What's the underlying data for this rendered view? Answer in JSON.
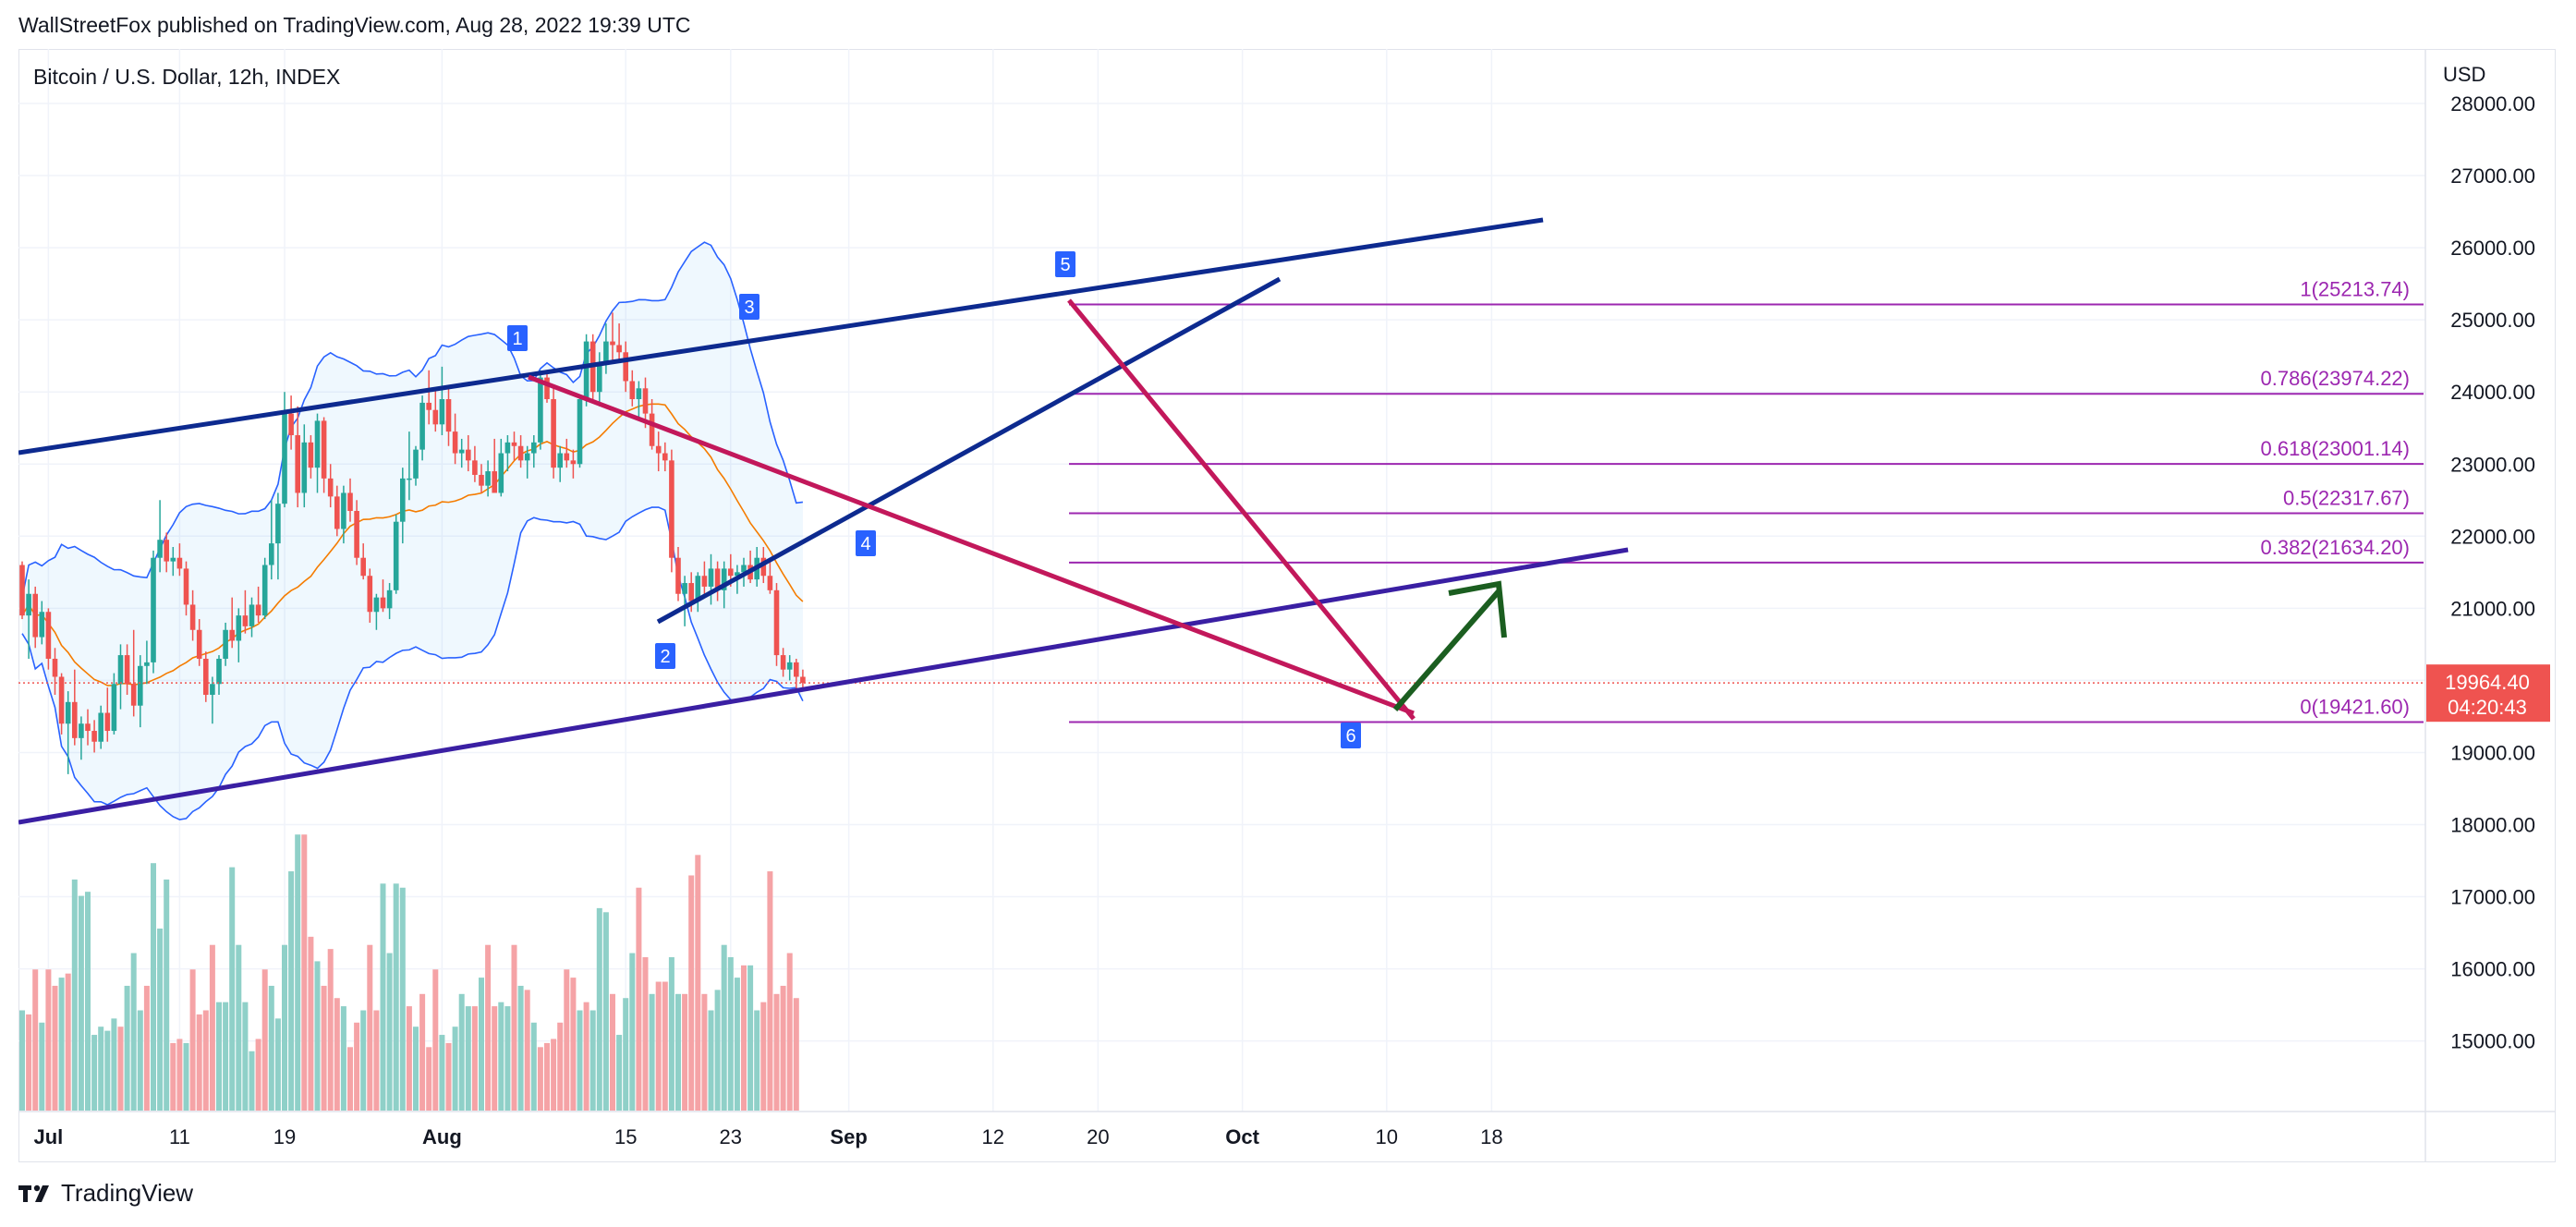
{
  "header": {
    "publisher": "WallStreetFox published on TradingView.com, Aug 28, 2022 19:39 UTC",
    "symbol": "Bitcoin / U.S. Dollar, 12h, INDEX"
  },
  "footer": {
    "brand": "TradingView"
  },
  "colors": {
    "up": "#26a69a",
    "down": "#ef5350",
    "vol_up": "#8fd0c8",
    "vol_down": "#f5a3a6",
    "channel": "#0d2a8f",
    "purple_line": "#3a1fa3",
    "magenta": "#c2185b",
    "fib": "#9c27b0",
    "bb": "#2962ff",
    "ma": "#f57c00",
    "arrow": "#1b5e20"
  },
  "chart_data": {
    "type": "candlestick",
    "title": "Bitcoin / U.S. Dollar, 12h, INDEX",
    "ylabel": "USD",
    "ylim": [
      14000,
      28400
    ],
    "y_ticks": [
      "28000.00",
      "27000.00",
      "26000.00",
      "25000.00",
      "24000.00",
      "23000.00",
      "22000.00",
      "21000.00",
      "20000.00",
      "19000.00",
      "18000.00",
      "17000.00",
      "16000.00",
      "15000.00"
    ],
    "x_ticks": [
      {
        "label": "Jul",
        "bold": true,
        "idx": 4
      },
      {
        "label": "11",
        "bold": false,
        "idx": 24
      },
      {
        "label": "19",
        "bold": false,
        "idx": 40
      },
      {
        "label": "Aug",
        "bold": true,
        "idx": 64
      },
      {
        "label": "15",
        "bold": false,
        "idx": 92
      },
      {
        "label": "23",
        "bold": false,
        "idx": 108
      },
      {
        "label": "Sep",
        "bold": true,
        "idx": 126
      },
      {
        "label": "12",
        "bold": false,
        "idx": 148
      },
      {
        "label": "20",
        "bold": false,
        "idx": 164
      },
      {
        "label": "Oct",
        "bold": true,
        "idx": 186
      },
      {
        "label": "10",
        "bold": false,
        "idx": 208
      },
      {
        "label": "18",
        "bold": false,
        "idx": 224
      }
    ],
    "candles": [
      [
        21600,
        21650,
        20850,
        20900
      ],
      [
        20900,
        21400,
        20300,
        21200
      ],
      [
        21200,
        21300,
        20450,
        20600
      ],
      [
        20600,
        21100,
        20500,
        20950
      ],
      [
        20950,
        21000,
        20150,
        20300
      ],
      [
        20300,
        20450,
        19800,
        20050
      ],
      [
        20050,
        20100,
        19250,
        19400
      ],
      [
        19400,
        19850,
        18700,
        19700
      ],
      [
        19700,
        20150,
        19100,
        19200
      ],
      [
        19200,
        19500,
        18900,
        19400
      ],
      [
        19400,
        19600,
        19100,
        19300
      ],
      [
        19300,
        19450,
        19000,
        19150
      ],
      [
        19150,
        19650,
        19050,
        19550
      ],
      [
        19550,
        19900,
        19150,
        19300
      ],
      [
        19300,
        20100,
        19250,
        19950
      ],
      [
        19950,
        20500,
        19600,
        20350
      ],
      [
        20350,
        20500,
        19800,
        19950
      ],
      [
        19950,
        20700,
        19500,
        19650
      ],
      [
        19650,
        20350,
        19350,
        20200
      ],
      [
        20200,
        20550,
        19950,
        20250
      ],
      [
        20250,
        21800,
        20100,
        21700
      ],
      [
        21700,
        22500,
        21500,
        21950
      ],
      [
        21950,
        22050,
        21500,
        21650
      ],
      [
        21650,
        21850,
        21450,
        21700
      ],
      [
        21700,
        21900,
        21450,
        21550
      ],
      [
        21550,
        21650,
        20900,
        21050
      ],
      [
        21050,
        21250,
        20550,
        20700
      ],
      [
        20700,
        20850,
        20200,
        20300
      ],
      [
        20300,
        20400,
        19700,
        19800
      ],
      [
        19800,
        20050,
        19400,
        19950
      ],
      [
        19950,
        20350,
        19800,
        20300
      ],
      [
        20300,
        20800,
        20200,
        20700
      ],
      [
        20700,
        21150,
        20450,
        20550
      ],
      [
        20550,
        21000,
        20250,
        20900
      ],
      [
        20900,
        21250,
        20650,
        20750
      ],
      [
        20750,
        21150,
        20600,
        21050
      ],
      [
        21050,
        21300,
        20800,
        20900
      ],
      [
        20900,
        21700,
        20850,
        21600
      ],
      [
        21600,
        22500,
        21400,
        21900
      ],
      [
        21900,
        22600,
        21400,
        22450
      ],
      [
        22450,
        24000,
        22400,
        23700
      ],
      [
        23700,
        23950,
        23200,
        23400
      ],
      [
        23400,
        23800,
        22400,
        22600
      ],
      [
        22600,
        23550,
        22400,
        23300
      ],
      [
        23300,
        23400,
        22800,
        22950
      ],
      [
        22950,
        23700,
        22600,
        23600
      ],
      [
        23600,
        23650,
        22600,
        22800
      ],
      [
        22800,
        23000,
        22400,
        22550
      ],
      [
        22550,
        22700,
        22000,
        22100
      ],
      [
        22100,
        22700,
        21900,
        22600
      ],
      [
        22600,
        22800,
        22200,
        22350
      ],
      [
        22350,
        22500,
        21600,
        21700
      ],
      [
        21700,
        21900,
        21400,
        21450
      ],
      [
        21450,
        21550,
        20800,
        20950
      ],
      [
        20950,
        21200,
        20700,
        21150
      ],
      [
        21150,
        21400,
        20950,
        21000
      ],
      [
        21000,
        21350,
        20850,
        21250
      ],
      [
        21250,
        22300,
        21200,
        22200
      ],
      [
        22200,
        22950,
        21900,
        22800
      ],
      [
        22800,
        23450,
        22500,
        22800
      ],
      [
        22800,
        23250,
        22700,
        23200
      ],
      [
        23200,
        23950,
        23050,
        23850
      ],
      [
        23850,
        24300,
        23550,
        23750
      ],
      [
        23750,
        24050,
        23450,
        23550
      ],
      [
        23550,
        24350,
        23400,
        23900
      ],
      [
        23900,
        24050,
        23250,
        23450
      ],
      [
        23450,
        23700,
        23000,
        23150
      ],
      [
        23150,
        23350,
        22950,
        23200
      ],
      [
        23200,
        23400,
        22900,
        23050
      ],
      [
        23050,
        23250,
        22750,
        22850
      ],
      [
        22850,
        23000,
        22600,
        22700
      ],
      [
        22700,
        23050,
        22550,
        22900
      ],
      [
        22900,
        23350,
        22700,
        22600
      ],
      [
        22600,
        23350,
        22550,
        23150
      ],
      [
        23150,
        23400,
        22900,
        23300
      ],
      [
        23300,
        23450,
        23050,
        23250
      ],
      [
        23250,
        23400,
        22950,
        23050
      ],
      [
        23050,
        23250,
        22800,
        23150
      ],
      [
        23150,
        23400,
        22950,
        23300
      ],
      [
        23300,
        24300,
        23200,
        24200
      ],
      [
        24200,
        24250,
        23850,
        23900
      ],
      [
        23900,
        24050,
        22800,
        22950
      ],
      [
        22950,
        23250,
        22750,
        23150
      ],
      [
        23150,
        23350,
        22950,
        23050
      ],
      [
        23050,
        23200,
        22800,
        23000
      ],
      [
        23000,
        23950,
        22950,
        23900
      ],
      [
        23900,
        24800,
        23800,
        24700
      ],
      [
        24700,
        24800,
        23900,
        24000
      ],
      [
        24000,
        24550,
        23800,
        24400
      ],
      [
        24400,
        24950,
        24250,
        24700
      ],
      [
        24700,
        25100,
        24400,
        24650
      ],
      [
        24650,
        24950,
        24400,
        24550
      ],
      [
        24550,
        24700,
        24000,
        24150
      ],
      [
        24150,
        24300,
        23800,
        23900
      ],
      [
        23900,
        24150,
        23650,
        24050
      ],
      [
        24050,
        24200,
        23500,
        23700
      ],
      [
        23700,
        23900,
        23200,
        23250
      ],
      [
        23250,
        23450,
        22900,
        23150
      ],
      [
        23150,
        23300,
        22900,
        23050
      ],
      [
        23050,
        23200,
        21500,
        21700
      ],
      [
        21700,
        21850,
        21100,
        21200
      ],
      [
        21200,
        21450,
        20750,
        21350
      ],
      [
        21350,
        21500,
        20950,
        21100
      ],
      [
        21100,
        21500,
        20950,
        21450
      ],
      [
        21450,
        21650,
        21200,
        21300
      ],
      [
        21300,
        21750,
        21050,
        21550
      ],
      [
        21550,
        21650,
        21100,
        21250
      ],
      [
        21250,
        21650,
        21000,
        21550
      ],
      [
        21550,
        21750,
        21300,
        21450
      ],
      [
        21450,
        21600,
        21200,
        21500
      ],
      [
        21500,
        21700,
        21300,
        21600
      ],
      [
        21600,
        21800,
        21350,
        21400
      ],
      [
        21400,
        21850,
        21300,
        21700
      ],
      [
        21700,
        21850,
        21350,
        21450
      ],
      [
        21450,
        21650,
        21200,
        21250
      ],
      [
        21250,
        21350,
        20200,
        20350
      ],
      [
        20350,
        20450,
        20050,
        20150
      ],
      [
        20150,
        20350,
        20000,
        20250
      ],
      [
        20250,
        20300,
        19850,
        20050
      ],
      [
        20050,
        20150,
        19850,
        19964
      ]
    ],
    "volume": [
      [
        15000,
        1
      ],
      [
        14950,
        0
      ],
      [
        15500,
        0
      ],
      [
        14850,
        1
      ],
      [
        15500,
        0
      ],
      [
        15300,
        0
      ],
      [
        15400,
        1
      ],
      [
        15450,
        0
      ],
      [
        16600,
        1
      ],
      [
        16400,
        1
      ],
      [
        16450,
        1
      ],
      [
        14700,
        1
      ],
      [
        14800,
        1
      ],
      [
        14750,
        1
      ],
      [
        14900,
        1
      ],
      [
        14800,
        0
      ],
      [
        15300,
        1
      ],
      [
        15700,
        1
      ],
      [
        15000,
        1
      ],
      [
        15300,
        0
      ],
      [
        16800,
        1
      ],
      [
        16000,
        1
      ],
      [
        16600,
        1
      ],
      [
        14600,
        0
      ],
      [
        14650,
        0
      ],
      [
        14600,
        1
      ],
      [
        15500,
        0
      ],
      [
        14950,
        0
      ],
      [
        15000,
        0
      ],
      [
        15800,
        0
      ],
      [
        15100,
        1
      ],
      [
        15100,
        1
      ],
      [
        16750,
        1
      ],
      [
        15800,
        1
      ],
      [
        15100,
        1
      ],
      [
        14500,
        1
      ],
      [
        14650,
        0
      ],
      [
        15500,
        0
      ],
      [
        15300,
        1
      ],
      [
        14900,
        1
      ],
      [
        15800,
        1
      ],
      [
        16700,
        1
      ],
      [
        17150,
        1
      ],
      [
        17150,
        0
      ],
      [
        15900,
        0
      ],
      [
        15600,
        1
      ],
      [
        15300,
        0
      ],
      [
        15750,
        0
      ],
      [
        15150,
        0
      ],
      [
        15050,
        1
      ],
      [
        14550,
        0
      ],
      [
        14850,
        0
      ],
      [
        15000,
        1
      ],
      [
        15800,
        0
      ],
      [
        15000,
        0
      ],
      [
        16550,
        1
      ],
      [
        15700,
        1
      ],
      [
        16550,
        1
      ],
      [
        16500,
        1
      ],
      [
        15050,
        0
      ],
      [
        14800,
        1
      ],
      [
        15200,
        0
      ],
      [
        14550,
        0
      ],
      [
        15500,
        0
      ],
      [
        14700,
        1
      ],
      [
        14600,
        0
      ],
      [
        14800,
        1
      ],
      [
        15200,
        1
      ],
      [
        15050,
        1
      ],
      [
        15050,
        0
      ],
      [
        15400,
        1
      ],
      [
        15800,
        0
      ],
      [
        15050,
        0
      ],
      [
        15100,
        1
      ],
      [
        15050,
        1
      ],
      [
        15800,
        0
      ],
      [
        15300,
        1
      ],
      [
        15250,
        0
      ],
      [
        14850,
        1
      ],
      [
        14550,
        0
      ],
      [
        14600,
        0
      ],
      [
        14650,
        0
      ],
      [
        14850,
        0
      ],
      [
        15500,
        0
      ],
      [
        15400,
        0
      ],
      [
        15000,
        1
      ],
      [
        15100,
        0
      ],
      [
        15000,
        1
      ],
      [
        16250,
        1
      ],
      [
        16200,
        1
      ],
      [
        15200,
        0
      ],
      [
        14700,
        1
      ],
      [
        15150,
        1
      ],
      [
        15700,
        1
      ],
      [
        16500,
        0
      ],
      [
        15650,
        0
      ],
      [
        15200,
        1
      ],
      [
        15350,
        0
      ],
      [
        15350,
        0
      ],
      [
        15650,
        1
      ],
      [
        15200,
        1
      ],
      [
        15200,
        0
      ],
      [
        16650,
        0
      ],
      [
        16900,
        0
      ],
      [
        15200,
        0
      ],
      [
        15000,
        1
      ],
      [
        15250,
        1
      ],
      [
        15800,
        1
      ],
      [
        15650,
        1
      ],
      [
        15400,
        1
      ],
      [
        15550,
        0
      ],
      [
        15550,
        1
      ],
      [
        15000,
        1
      ],
      [
        15100,
        0
      ],
      [
        16700,
        0
      ],
      [
        15200,
        0
      ],
      [
        15300,
        0
      ],
      [
        15700,
        0
      ],
      [
        15150,
        0
      ]
    ],
    "fib_levels": [
      {
        "ratio": "1",
        "value": 25213.74,
        "label": "1(25213.74)"
      },
      {
        "ratio": "0.786",
        "value": 23974.22,
        "label": "0.786(23974.22)"
      },
      {
        "ratio": "0.618",
        "value": 23001.14,
        "label": "0.618(23001.14)"
      },
      {
        "ratio": "0.5",
        "value": 22317.67,
        "label": "0.5(22317.67)"
      },
      {
        "ratio": "0.382",
        "value": 21634.2,
        "label": "0.382(21634.20)"
      },
      {
        "ratio": "0",
        "value": 19421.6,
        "label": "0(19421.60)"
      }
    ],
    "wave_labels": [
      "1",
      "2",
      "3",
      "4",
      "5",
      "6"
    ],
    "last_price": {
      "value": "19964.40",
      "countdown": "04:20:43"
    }
  }
}
